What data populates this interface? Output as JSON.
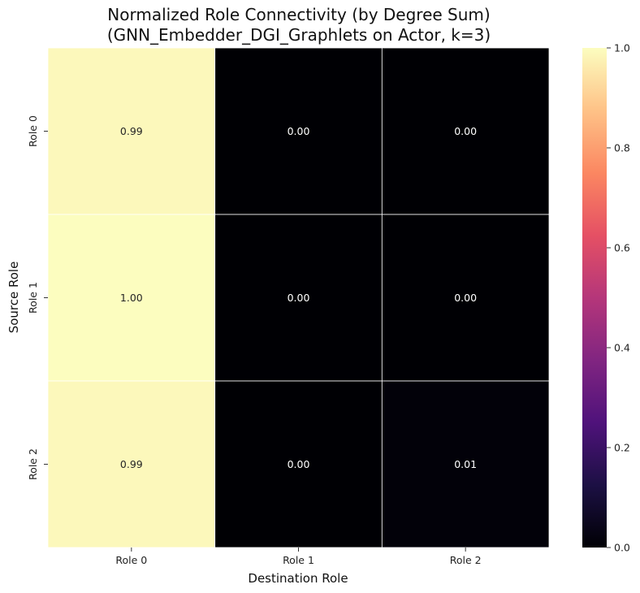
{
  "chart_data": {
    "type": "heatmap",
    "title_lines": [
      "Normalized Role Connectivity (by Degree Sum)",
      "(GNN_Embedder_DGI_Graphlets on Actor, k=3)"
    ],
    "xlabel": "Destination Role",
    "ylabel": "Source Role",
    "x_categories": [
      "Role 0",
      "Role 1",
      "Role 2"
    ],
    "y_categories": [
      "Role 0",
      "Role 1",
      "Role 2"
    ],
    "values": [
      [
        0.99,
        0.0,
        0.0
      ],
      [
        1.0,
        0.0,
        0.0
      ],
      [
        0.99,
        0.0,
        0.01
      ]
    ],
    "value_format": "0.00",
    "colormap": "magma",
    "vmin": 0.0,
    "vmax": 1.0,
    "colorbar_ticks": [
      0.0,
      0.2,
      0.4,
      0.6,
      0.8,
      1.0
    ],
    "colorbar_tick_labels": [
      "0.0",
      "0.2",
      "0.4",
      "0.6",
      "0.8",
      "1.0"
    ],
    "cell_border_color": "#ffffff",
    "grid": false
  }
}
